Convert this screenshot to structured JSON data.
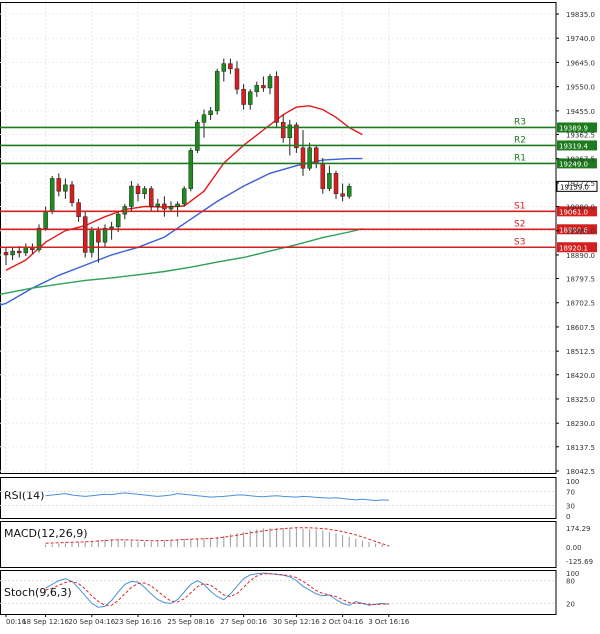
{
  "chart_data": {
    "type": "candlestick",
    "colors": {
      "up": "#1e8c1e",
      "down": "#d81e1e",
      "ma_red": "#e01b1b",
      "ma_blue": "#3b5fd6",
      "ma_green": "#2fa05a",
      "resistance": "#1e7a1e",
      "support": "#d41f1f",
      "rsi": "#4a90d9",
      "macd_hist": "#9a9a9a",
      "macd_signal": "#d62b2b",
      "stoch_main": "#4a90d9",
      "stoch_signal": "#d62b2b"
    },
    "price_axis": {
      "range": [
        18042.5,
        19835.0
      ],
      "ticks": [
        "19835.0",
        "19740.0",
        "19645.0",
        "19550.0",
        "19455.0",
        "19362.5",
        "19267.5",
        "19172.5",
        "19080.0",
        "18985.0",
        "18890.0",
        "18797.5",
        "18702.5",
        "18607.5",
        "18512.5",
        "18420.0",
        "18325.0",
        "18230.0",
        "18137.5",
        "18042.5"
      ]
    },
    "x_axis": {
      "labels": [
        {
          "text": "00:16",
          "index": 0
        },
        {
          "text": "18 Sep 12:16",
          "index": 6
        },
        {
          "text": "20 Sep 04:16",
          "index": 13
        },
        {
          "text": "23 Sep 16:16",
          "index": 20
        },
        {
          "text": "25 Sep 08:16",
          "index": 28
        },
        {
          "text": "27 Sep 00:16",
          "index": 36
        },
        {
          "text": "30 Sep 12:16",
          "index": 44
        },
        {
          "text": "2 Oct 04:16",
          "index": 51
        },
        {
          "text": "3 Oct 16:16",
          "index": 58
        }
      ]
    },
    "levels": [
      {
        "name": "R3",
        "value": 19389.9,
        "label": "19389.9",
        "kind": "resistance"
      },
      {
        "name": "R2",
        "value": 19319.4,
        "label": "19319.4",
        "kind": "resistance"
      },
      {
        "name": "R1",
        "value": 19249.0,
        "label": "19249.0",
        "kind": "resistance"
      },
      {
        "name": "S1",
        "value": 19061.0,
        "label": "19061.0",
        "kind": "support"
      },
      {
        "name": "S2",
        "value": 18990.6,
        "label": "18990.6",
        "kind": "support"
      },
      {
        "name": "S3",
        "value": 18920.1,
        "label": "18920.1",
        "kind": "support"
      }
    ],
    "current_price": {
      "value": 19159.0,
      "label": "19159.0"
    },
    "candles": [
      {
        "o": 18900,
        "h": 18920,
        "l": 18850,
        "c": 18890
      },
      {
        "o": 18890,
        "h": 18920,
        "l": 18870,
        "c": 18905
      },
      {
        "o": 18905,
        "h": 18925,
        "l": 18880,
        "c": 18898
      },
      {
        "o": 18898,
        "h": 18935,
        "l": 18885,
        "c": 18918
      },
      {
        "o": 18918,
        "h": 18935,
        "l": 18895,
        "c": 18910
      },
      {
        "o": 18910,
        "h": 19010,
        "l": 18900,
        "c": 18995
      },
      {
        "o": 18995,
        "h": 19080,
        "l": 18985,
        "c": 19060
      },
      {
        "o": 19060,
        "h": 19200,
        "l": 19050,
        "c": 19190
      },
      {
        "o": 19190,
        "h": 19210,
        "l": 19120,
        "c": 19140
      },
      {
        "o": 19140,
        "h": 19190,
        "l": 19110,
        "c": 19165
      },
      {
        "o": 19165,
        "h": 19180,
        "l": 19080,
        "c": 19095
      },
      {
        "o": 19095,
        "h": 19110,
        "l": 19020,
        "c": 19040
      },
      {
        "o": 19040,
        "h": 19060,
        "l": 18880,
        "c": 18900
      },
      {
        "o": 18900,
        "h": 19000,
        "l": 18880,
        "c": 18985
      },
      {
        "o": 18985,
        "h": 19000,
        "l": 18860,
        "c": 18940
      },
      {
        "o": 18940,
        "h": 19010,
        "l": 18920,
        "c": 18995
      },
      {
        "o": 18995,
        "h": 19020,
        "l": 18950,
        "c": 19000
      },
      {
        "o": 19000,
        "h": 19060,
        "l": 18980,
        "c": 19050
      },
      {
        "o": 19050,
        "h": 19090,
        "l": 19030,
        "c": 19080
      },
      {
        "o": 19080,
        "h": 19180,
        "l": 19060,
        "c": 19160
      },
      {
        "o": 19160,
        "h": 19170,
        "l": 19100,
        "c": 19130
      },
      {
        "o": 19130,
        "h": 19160,
        "l": 19110,
        "c": 19150
      },
      {
        "o": 19150,
        "h": 19160,
        "l": 19060,
        "c": 19080
      },
      {
        "o": 19080,
        "h": 19110,
        "l": 19060,
        "c": 19090
      },
      {
        "o": 19090,
        "h": 19120,
        "l": 19040,
        "c": 19070
      },
      {
        "o": 19070,
        "h": 19100,
        "l": 19060,
        "c": 19080
      },
      {
        "o": 19080,
        "h": 19100,
        "l": 19040,
        "c": 19090
      },
      {
        "o": 19090,
        "h": 19160,
        "l": 19080,
        "c": 19150
      },
      {
        "o": 19150,
        "h": 19310,
        "l": 19140,
        "c": 19300
      },
      {
        "o": 19300,
        "h": 19420,
        "l": 19290,
        "c": 19410
      },
      {
        "o": 19410,
        "h": 19460,
        "l": 19350,
        "c": 19440
      },
      {
        "o": 19440,
        "h": 19470,
        "l": 19420,
        "c": 19455
      },
      {
        "o": 19455,
        "h": 19620,
        "l": 19440,
        "c": 19610
      },
      {
        "o": 19610,
        "h": 19660,
        "l": 19570,
        "c": 19640
      },
      {
        "o": 19640,
        "h": 19660,
        "l": 19600,
        "c": 19620
      },
      {
        "o": 19620,
        "h": 19650,
        "l": 19520,
        "c": 19540
      },
      {
        "o": 19540,
        "h": 19560,
        "l": 19460,
        "c": 19480
      },
      {
        "o": 19480,
        "h": 19540,
        "l": 19460,
        "c": 19530
      },
      {
        "o": 19530,
        "h": 19570,
        "l": 19510,
        "c": 19555
      },
      {
        "o": 19555,
        "h": 19590,
        "l": 19530,
        "c": 19545
      },
      {
        "o": 19545,
        "h": 19600,
        "l": 19520,
        "c": 19590
      },
      {
        "o": 19590,
        "h": 19610,
        "l": 19390,
        "c": 19410
      },
      {
        "o": 19410,
        "h": 19440,
        "l": 19330,
        "c": 19350
      },
      {
        "o": 19350,
        "h": 19420,
        "l": 19280,
        "c": 19400
      },
      {
        "o": 19400,
        "h": 19410,
        "l": 19290,
        "c": 19310
      },
      {
        "o": 19310,
        "h": 19380,
        "l": 19200,
        "c": 19230
      },
      {
        "o": 19230,
        "h": 19330,
        "l": 19220,
        "c": 19310
      },
      {
        "o": 19310,
        "h": 19320,
        "l": 19230,
        "c": 19250
      },
      {
        "o": 19250,
        "h": 19270,
        "l": 19130,
        "c": 19150
      },
      {
        "o": 19150,
        "h": 19240,
        "l": 19140,
        "c": 19210
      },
      {
        "o": 19210,
        "h": 19220,
        "l": 19110,
        "c": 19130
      },
      {
        "o": 19130,
        "h": 19170,
        "l": 19100,
        "c": 19120
      },
      {
        "o": 19120,
        "h": 19170,
        "l": 19110,
        "c": 19159
      }
    ],
    "moving_averages": [
      {
        "color_key": "ma_red",
        "values": [
          [
            0,
            18830
          ],
          [
            3,
            18870
          ],
          [
            6,
            18940
          ],
          [
            9,
            18985
          ],
          [
            12,
            19005
          ],
          [
            15,
            19040
          ],
          [
            18,
            19068
          ],
          [
            21,
            19080
          ],
          [
            24,
            19078
          ],
          [
            27,
            19082
          ],
          [
            30,
            19140
          ],
          [
            33,
            19250
          ],
          [
            36,
            19320
          ],
          [
            39,
            19380
          ],
          [
            42,
            19440
          ],
          [
            44,
            19470
          ],
          [
            46,
            19475
          ],
          [
            48,
            19460
          ],
          [
            50,
            19430
          ],
          [
            52,
            19390
          ],
          [
            54,
            19362
          ]
        ]
      },
      {
        "color_key": "ma_blue",
        "values": [
          [
            -12,
            18628
          ],
          [
            -6,
            18658
          ],
          [
            0,
            18700
          ],
          [
            4,
            18760
          ],
          [
            8,
            18810
          ],
          [
            12,
            18850
          ],
          [
            16,
            18890
          ],
          [
            20,
            18920
          ],
          [
            24,
            18960
          ],
          [
            28,
            19030
          ],
          [
            32,
            19100
          ],
          [
            36,
            19160
          ],
          [
            40,
            19210
          ],
          [
            44,
            19240
          ],
          [
            48,
            19262
          ],
          [
            52,
            19268
          ],
          [
            54,
            19268
          ]
        ]
      },
      {
        "color_key": "ma_green",
        "values": [
          [
            -12,
            18690
          ],
          [
            -6,
            18710
          ],
          [
            0,
            18740
          ],
          [
            4,
            18760
          ],
          [
            8,
            18775
          ],
          [
            12,
            18790
          ],
          [
            16,
            18800
          ],
          [
            20,
            18812
          ],
          [
            24,
            18825
          ],
          [
            28,
            18842
          ],
          [
            32,
            18862
          ],
          [
            36,
            18880
          ],
          [
            40,
            18905
          ],
          [
            44,
            18930
          ],
          [
            48,
            18958
          ],
          [
            52,
            18980
          ],
          [
            54,
            18993
          ]
        ]
      }
    ],
    "rsi": {
      "label": "RSI(14)",
      "ticks": [
        "100",
        "70",
        "30",
        "0"
      ],
      "values": [
        58,
        60,
        62,
        64,
        60,
        58,
        56,
        58,
        60,
        62,
        61,
        64,
        66,
        64,
        62,
        60,
        58,
        56,
        58,
        60,
        64,
        62,
        60,
        58,
        56,
        54,
        55,
        56,
        58,
        60,
        60,
        58,
        56,
        55,
        57,
        58,
        56,
        55,
        54,
        56,
        55,
        53,
        52,
        51,
        52,
        50,
        48,
        46,
        48,
        46,
        44,
        46,
        45
      ]
    },
    "macd": {
      "label": "MACD(12,26,9)",
      "ticks": [
        "174.29",
        "0.00",
        "-125.69"
      ],
      "histogram": [
        18,
        22,
        26,
        30,
        34,
        38,
        42,
        48,
        55,
        60,
        62,
        60,
        54,
        48,
        44,
        42,
        42,
        46,
        52,
        58,
        62,
        66,
        68,
        68,
        70,
        74,
        80,
        88,
        100,
        110,
        120,
        130,
        140,
        148,
        150,
        150,
        150,
        148,
        146,
        144,
        140,
        138,
        130,
        120,
        108,
        94,
        80,
        66,
        52,
        40,
        28,
        18,
        8
      ],
      "signal": [
        30,
        32,
        34,
        36,
        38,
        40,
        42,
        45,
        48,
        52,
        56,
        58,
        58,
        56,
        54,
        52,
        50,
        50,
        52,
        54,
        57,
        60,
        62,
        64,
        66,
        68,
        72,
        78,
        86,
        94,
        104,
        112,
        120,
        128,
        134,
        140,
        146,
        150,
        152,
        153,
        152,
        150,
        146,
        140,
        132,
        122,
        110,
        96,
        80,
        62,
        44,
        26,
        10
      ]
    },
    "stoch": {
      "label": "Stoch(9,6,3)",
      "ticks": [
        "100",
        "80",
        "20"
      ],
      "main": [
        60,
        70,
        80,
        85,
        78,
        60,
        40,
        20,
        10,
        12,
        28,
        50,
        70,
        78,
        76,
        62,
        45,
        30,
        22,
        20,
        30,
        50,
        70,
        80,
        70,
        52,
        38,
        30,
        45,
        65,
        85,
        95,
        98,
        100,
        98,
        96,
        94,
        90,
        80,
        65,
        55,
        45,
        40,
        42,
        30,
        20,
        15,
        25,
        20,
        15,
        18,
        20,
        18
      ],
      "signal": [
        55,
        60,
        68,
        75,
        78,
        72,
        58,
        40,
        25,
        15,
        15,
        28,
        45,
        62,
        72,
        74,
        66,
        52,
        38,
        26,
        24,
        32,
        48,
        64,
        72,
        68,
        56,
        42,
        38,
        46,
        62,
        80,
        92,
        98,
        98,
        97,
        95,
        93,
        88,
        78,
        66,
        54,
        46,
        42,
        38,
        30,
        22,
        20,
        20,
        18,
        17,
        18,
        19
      ]
    }
  }
}
